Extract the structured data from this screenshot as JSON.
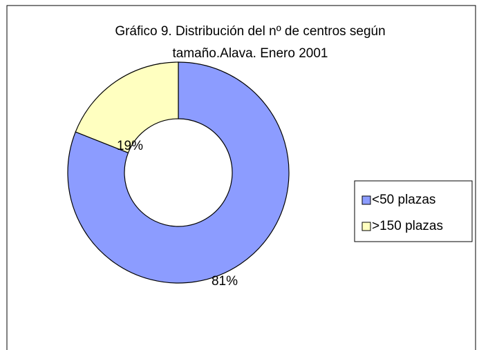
{
  "chart_data": {
    "type": "donut",
    "title": "Gráfico 9. Distribución del nº de centros según",
    "subtitle": "tamaño.Alava. Enero 2001",
    "categories": [
      "<50 plazas",
      ">150 plazas"
    ],
    "values": [
      81,
      19
    ],
    "value_labels": [
      "81%",
      "19%"
    ],
    "colors": [
      "#8c9cff",
      "#ffffc0"
    ],
    "legend": "right"
  }
}
